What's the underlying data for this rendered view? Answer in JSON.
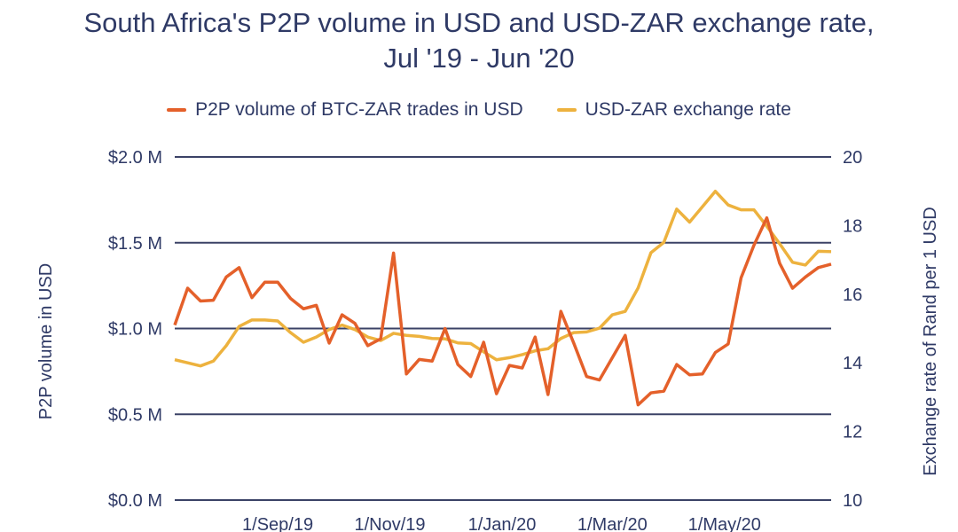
{
  "chart_data": {
    "type": "line",
    "title": "South Africa's P2P volume in USD and USD-ZAR exchange rate,",
    "subtitle": "Jul '19 - Jun '20",
    "legend_placement": "top",
    "grid": true,
    "x_start": "2019-07-07",
    "x_interval": "weekly",
    "xtick_labels": [
      "1/Sep/19",
      "1/Nov/19",
      "1/Jan/20",
      "1/Mar/20",
      "1/May/20"
    ],
    "y_left": {
      "label": "P2P volume in USD",
      "ylim": [
        0,
        2.0
      ],
      "unit": "USD million",
      "tick_labels": [
        "$0.0 M",
        "$0.5 M",
        "$1.0 M",
        "$1.5 M",
        "$2.0 M"
      ]
    },
    "y_right": {
      "label": "Exchange rate of Rand per 1 USD",
      "ylim": [
        10,
        20
      ],
      "tick_labels": [
        "10",
        "12",
        "14",
        "16",
        "18",
        "20"
      ]
    },
    "series": [
      {
        "name": "P2P volume of BTC-ZAR trades in USD",
        "axis": "left",
        "color": "#e4602a",
        "values": [
          1.02,
          1.235,
          1.16,
          1.165,
          1.3,
          1.355,
          1.18,
          1.27,
          1.27,
          1.175,
          1.115,
          1.135,
          0.915,
          1.08,
          1.03,
          0.9,
          0.94,
          1.44,
          0.735,
          0.82,
          0.81,
          1.0,
          0.79,
          0.72,
          0.92,
          0.62,
          0.785,
          0.77,
          0.95,
          0.615,
          1.1,
          0.915,
          0.72,
          0.7,
          0.83,
          0.96,
          0.555,
          0.625,
          0.635,
          0.79,
          0.73,
          0.735,
          0.86,
          0.91,
          1.295,
          1.485,
          1.645,
          1.38,
          1.235,
          1.3,
          1.355,
          1.375
        ]
      },
      {
        "name": "USD-ZAR exchange rate",
        "axis": "right",
        "color": "#edb23e",
        "values": [
          14.09,
          14.0,
          13.91,
          14.05,
          14.5,
          15.06,
          15.25,
          15.25,
          15.22,
          14.88,
          14.6,
          14.75,
          14.97,
          15.1,
          14.97,
          14.75,
          14.65,
          14.86,
          14.8,
          14.77,
          14.71,
          14.7,
          14.58,
          14.56,
          14.32,
          14.09,
          14.15,
          14.24,
          14.35,
          14.41,
          14.71,
          14.88,
          14.9,
          15.01,
          15.4,
          15.5,
          16.18,
          17.21,
          17.51,
          18.48,
          18.1,
          18.55,
          19.0,
          18.6,
          18.46,
          18.46,
          17.98,
          17.47,
          16.93,
          16.85,
          17.25,
          17.24
        ]
      }
    ]
  }
}
